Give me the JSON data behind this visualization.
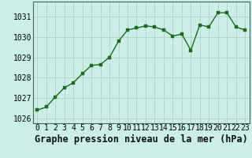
{
  "x": [
    0,
    1,
    2,
    3,
    4,
    5,
    6,
    7,
    8,
    9,
    10,
    11,
    12,
    13,
    14,
    15,
    16,
    17,
    18,
    19,
    20,
    21,
    22,
    23
  ],
  "y": [
    1026.4,
    1026.55,
    1027.05,
    1027.5,
    1027.75,
    1028.2,
    1028.6,
    1028.65,
    1029.0,
    1029.8,
    1030.35,
    1030.45,
    1030.55,
    1030.5,
    1030.35,
    1030.05,
    1030.15,
    1029.35,
    1030.6,
    1030.5,
    1031.2,
    1031.2,
    1030.5,
    1030.35
  ],
  "line_color": "#1a6b1a",
  "marker_color": "#1a6b1a",
  "bg_color": "#cceee8",
  "grid_color": "#aaccbb",
  "title": "Graphe pression niveau de la mer (hPa)",
  "xlim": [
    -0.5,
    23.5
  ],
  "ylim": [
    1025.75,
    1031.75
  ],
  "yticks": [
    1026,
    1027,
    1028,
    1029,
    1030,
    1031
  ],
  "xticks": [
    0,
    1,
    2,
    3,
    4,
    5,
    6,
    7,
    8,
    9,
    10,
    11,
    12,
    13,
    14,
    15,
    16,
    17,
    18,
    19,
    20,
    21,
    22,
    23
  ],
  "title_fontsize": 8.5,
  "tick_fontsize": 7,
  "line_width": 1.0,
  "marker_size": 2.5
}
